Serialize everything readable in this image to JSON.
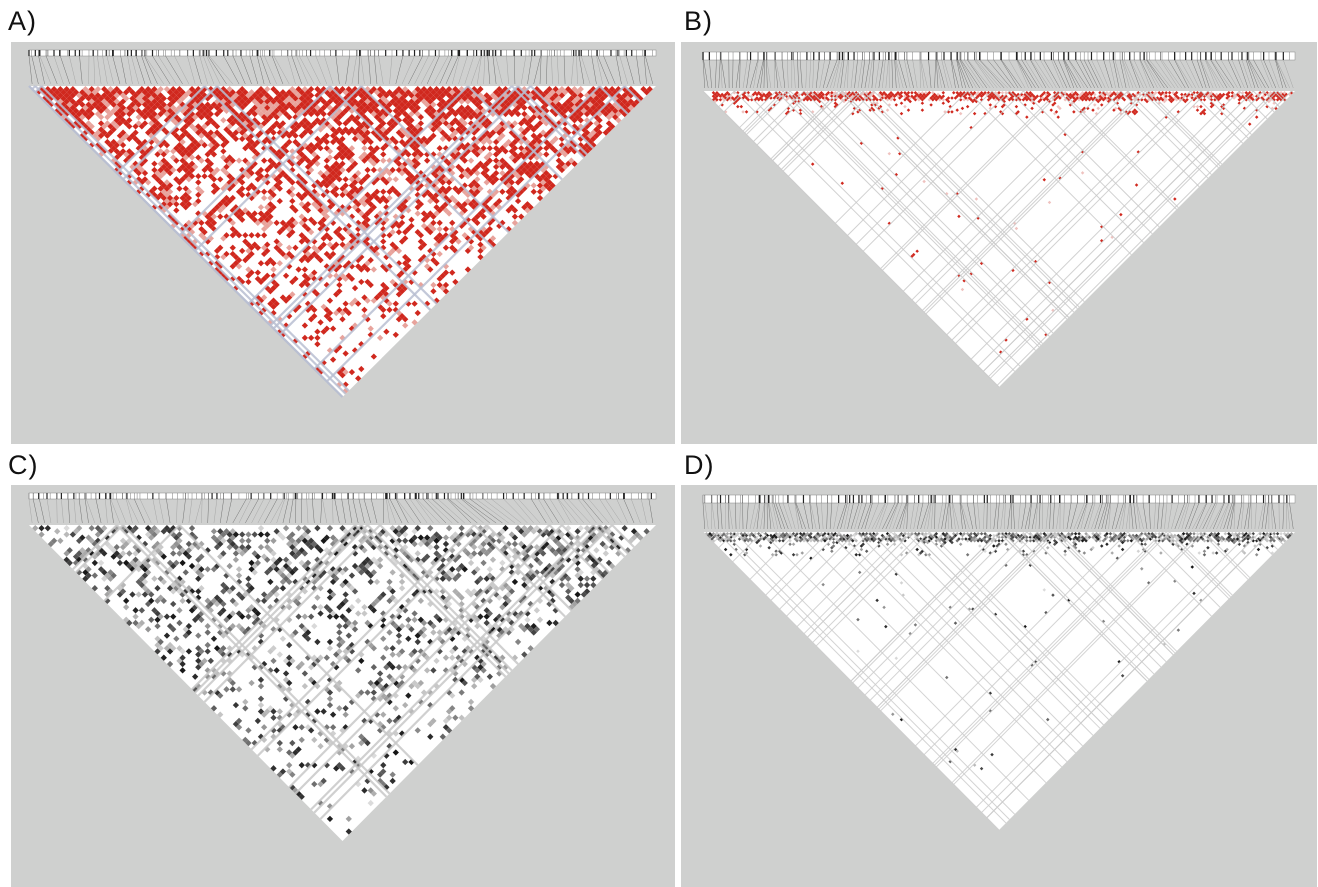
{
  "figure": {
    "panels": [
      {
        "id": "A",
        "label": "A)",
        "style": "red",
        "density": 0.62,
        "markers": 100,
        "colors": {
          "strong": "#d0281e",
          "medium": "#e8a39c",
          "weak": "#ffffff",
          "line": "#b9bfd2"
        }
      },
      {
        "id": "B",
        "label": "B)",
        "style": "red-sparse",
        "density": 0.06,
        "markers": 170,
        "colors": {
          "strong": "#d0281e",
          "medium": "#efc2bf",
          "weak": "#ffffff",
          "line": "#c9c9c9"
        }
      },
      {
        "id": "C",
        "label": "C)",
        "style": "gray",
        "density": 0.35,
        "markers": 100,
        "colors": {
          "strong": "#111111",
          "medium": "#9a9a9a",
          "weak": "#ffffff",
          "line": "#c8c8c8"
        }
      },
      {
        "id": "D",
        "label": "D)",
        "style": "gray-sparse",
        "density": 0.04,
        "markers": 170,
        "colors": {
          "strong": "#333333",
          "medium": "#bdbdbd",
          "weak": "#ffffff",
          "line": "#cccccc"
        }
      }
    ]
  }
}
